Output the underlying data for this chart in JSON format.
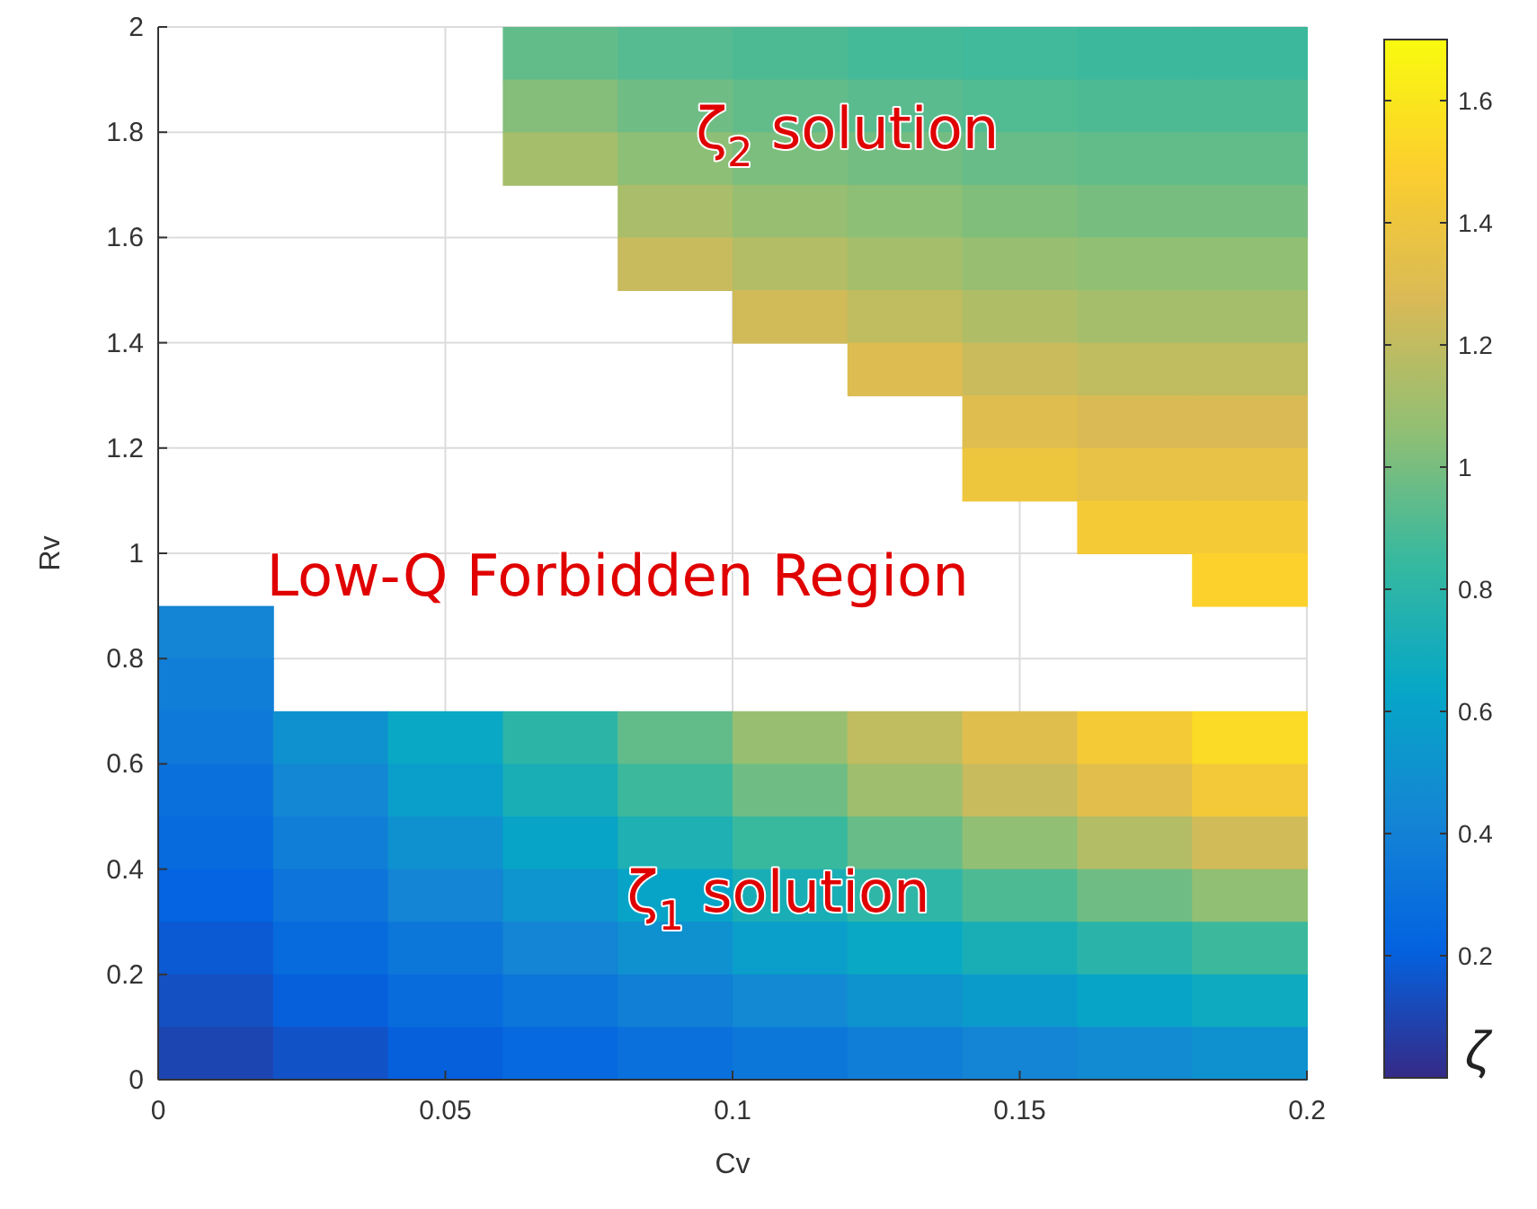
{
  "chart_data": {
    "type": "heatmap",
    "xlabel": "Cv",
    "ylabel": "Rv",
    "clabel": "ζ",
    "xlim": [
      0,
      0.2
    ],
    "ylim": [
      0,
      2
    ],
    "xticks": [
      0,
      0.05,
      0.1,
      0.15,
      0.2
    ],
    "yticks": [
      0,
      0.2,
      0.4,
      0.6,
      0.8,
      1,
      1.2,
      1.4,
      1.6,
      1.8,
      2
    ],
    "grid": true,
    "clim": [
      0,
      1.7
    ],
    "cticks": [
      0.2,
      0.4,
      0.6,
      0.8,
      1,
      1.2,
      1.4,
      1.6
    ],
    "cells": [
      [
        null,
        null,
        null,
        0.95,
        0.92,
        0.9,
        0.88,
        0.87,
        0.86,
        0.86
      ],
      [
        null,
        null,
        null,
        1.03,
        0.98,
        0.95,
        0.93,
        0.91,
        0.9,
        0.9
      ],
      [
        null,
        null,
        null,
        1.12,
        1.05,
        1.01,
        0.99,
        0.96,
        0.95,
        0.95
      ],
      [
        null,
        null,
        null,
        null,
        1.13,
        1.08,
        1.05,
        1.02,
        1.0,
        1.0
      ],
      [
        null,
        null,
        null,
        null,
        1.22,
        1.16,
        1.12,
        1.08,
        1.06,
        1.06
      ],
      [
        null,
        null,
        null,
        null,
        null,
        1.25,
        1.2,
        1.15,
        1.12,
        1.12
      ],
      [
        null,
        null,
        null,
        null,
        null,
        null,
        1.3,
        1.23,
        1.2,
        1.2
      ],
      [
        null,
        null,
        null,
        null,
        null,
        null,
        null,
        1.31,
        1.28,
        1.28
      ],
      [
        null,
        null,
        null,
        null,
        null,
        null,
        null,
        1.4,
        1.36,
        1.36
      ],
      [
        null,
        null,
        null,
        null,
        null,
        null,
        null,
        null,
        1.44,
        1.44
      ],
      [
        null,
        null,
        null,
        null,
        null,
        null,
        null,
        null,
        null,
        1.5
      ],
      [
        0.42,
        null,
        null,
        null,
        null,
        null,
        null,
        null,
        null,
        null
      ],
      [
        0.38,
        null,
        null,
        null,
        null,
        null,
        null,
        null,
        null,
        null
      ],
      [
        0.35,
        0.5,
        0.65,
        0.8,
        0.95,
        1.08,
        1.2,
        1.32,
        1.44,
        1.55
      ],
      [
        0.3,
        0.44,
        0.58,
        0.72,
        0.86,
        0.98,
        1.1,
        1.22,
        1.33,
        1.43
      ],
      [
        0.26,
        0.38,
        0.5,
        0.62,
        0.74,
        0.85,
        0.96,
        1.06,
        1.16,
        1.25
      ],
      [
        0.22,
        0.32,
        0.42,
        0.52,
        0.62,
        0.72,
        0.81,
        0.9,
        0.98,
        1.06
      ],
      [
        0.18,
        0.26,
        0.34,
        0.42,
        0.5,
        0.58,
        0.65,
        0.72,
        0.79,
        0.86
      ],
      [
        0.14,
        0.2,
        0.27,
        0.33,
        0.39,
        0.45,
        0.51,
        0.56,
        0.62,
        0.67
      ],
      [
        0.1,
        0.15,
        0.2,
        0.25,
        0.3,
        0.34,
        0.38,
        0.42,
        0.46,
        0.5
      ]
    ],
    "annotations": [
      "ζ$_{2}$ solution",
      "Low-Q Forbidden Region",
      "ζ$_{1}$ solution"
    ]
  }
}
